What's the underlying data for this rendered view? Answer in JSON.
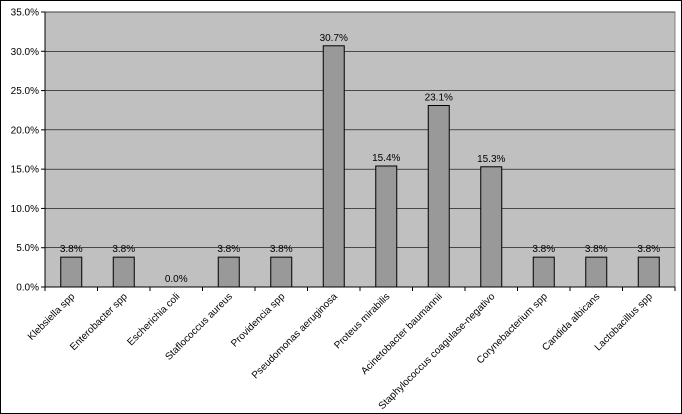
{
  "chart_data": {
    "type": "bar",
    "categories": [
      "Klebsiella spp",
      "Enterobacter spp",
      "Escherichia coli",
      "Staflococcus aureus",
      "Providencia spp",
      "Pseudomonas aeruginosa",
      "Proteus mirabilis",
      "Acinetobacter baumannii",
      "Staphylococcus coagulase-negativo",
      "Corynebacterium spp",
      "Candida albicans",
      "Lactobacillus spp"
    ],
    "values": [
      3.8,
      3.8,
      0.0,
      3.8,
      3.8,
      30.7,
      15.4,
      23.1,
      15.3,
      3.8,
      3.8,
      3.8
    ],
    "data_labels": [
      "3.8%",
      "3.8%",
      "0.0%",
      "3.8%",
      "3.8%",
      "30.7%",
      "15.4%",
      "23.1%",
      "15.3%",
      "3.8%",
      "3.8%",
      "3.8%"
    ],
    "yticks": [
      "0.0%",
      "5.0%",
      "10.0%",
      "15.0%",
      "20.0%",
      "25.0%",
      "30.0%",
      "35.0%"
    ],
    "ylim": [
      0,
      35
    ],
    "grid": true,
    "title": "",
    "xlabel": "",
    "ylabel": "",
    "colors": {
      "plot_background": "#c0c0c0",
      "bar_fill": "#999999",
      "bar_stroke": "#000000",
      "gridline": "#000000"
    }
  }
}
